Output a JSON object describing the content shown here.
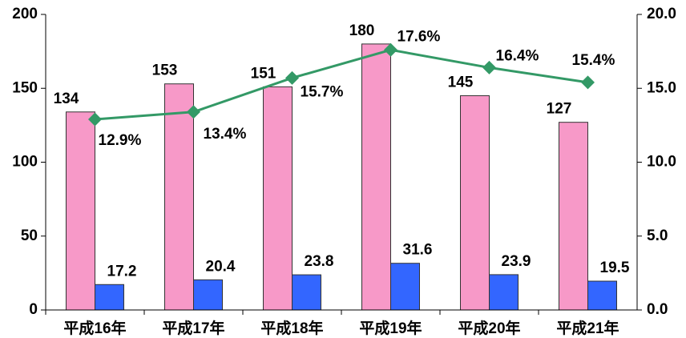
{
  "chart_data": {
    "type": "bar-line",
    "categories": [
      "平成16年",
      "平成17年",
      "平成18年",
      "平成19年",
      "平成20年",
      "平成21年"
    ],
    "series": [
      {
        "type": "bar",
        "color": "#f799c8",
        "values": [
          134,
          153,
          151,
          180,
          145,
          127
        ]
      },
      {
        "type": "bar",
        "color": "#3366ff",
        "values": [
          17.2,
          20.4,
          23.8,
          31.6,
          23.9,
          19.5
        ]
      },
      {
        "type": "line",
        "axis": "y2",
        "color": "#339966",
        "values": [
          12.9,
          13.4,
          15.7,
          17.6,
          16.4,
          15.4
        ],
        "value_labels": [
          "12.9%",
          "13.4%",
          "15.7%",
          "17.6%",
          "16.4%",
          "15.4%"
        ]
      }
    ],
    "ylim": [
      0,
      200
    ],
    "yticks": [
      0,
      50,
      100,
      150,
      200
    ],
    "y2lim": [
      0,
      20
    ],
    "y2ticks": [
      {
        "value": 0,
        "label": "0.0"
      },
      {
        "value": 5,
        "label": "5.0"
      },
      {
        "value": 10,
        "label": "10.0"
      },
      {
        "value": 15,
        "label": "15.0"
      },
      {
        "value": 20,
        "label": "20.0"
      }
    ],
    "grid": false
  }
}
